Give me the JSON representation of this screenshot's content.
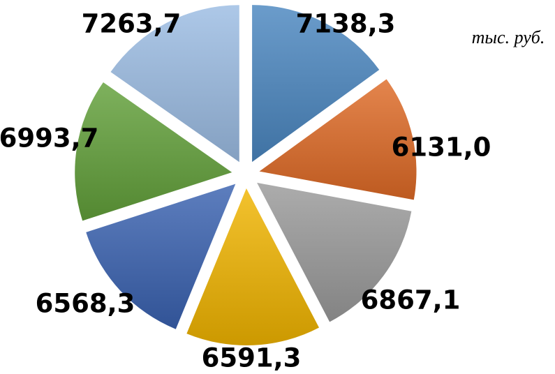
{
  "chart_data": {
    "type": "pie",
    "exploded": true,
    "unit": "тыс. руб.",
    "values": [
      7138.3,
      6131.0,
      6867.1,
      6591.3,
      6568.3,
      6993.7,
      7263.7
    ],
    "labels": [
      "7138,3",
      "6131,0",
      "6867,1",
      "6591,3",
      "6568,3",
      "6993,7",
      "7263,7"
    ],
    "colors": [
      "#4a86c0",
      "#de6a26",
      "#9a9a9a",
      "#f0b400",
      "#3a62b0",
      "#62a03a",
      "#9bbce3"
    ],
    "legend": "none",
    "grid": false
  }
}
